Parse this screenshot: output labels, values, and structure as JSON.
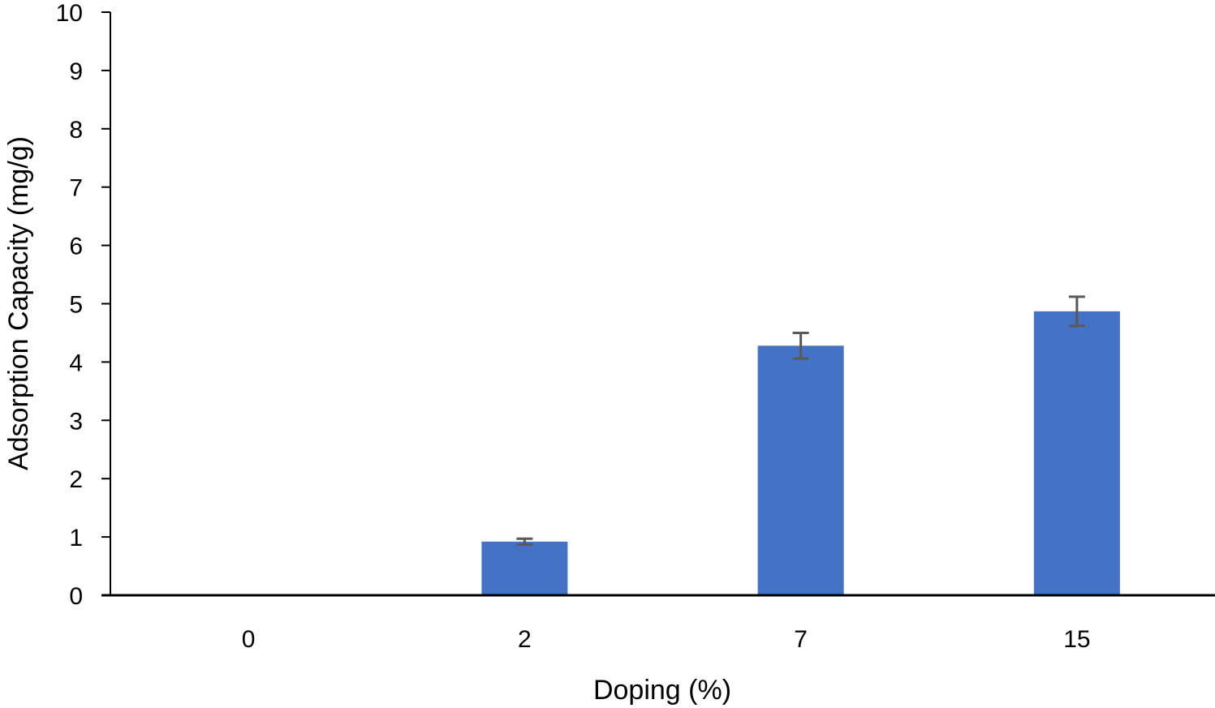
{
  "chart_data": {
    "type": "bar",
    "title": "",
    "xlabel": "Doping  (%)",
    "ylabel": "Adsorption Capacity (mg/g)",
    "categories": [
      "0",
      "2",
      "7",
      "15"
    ],
    "values": [
      0,
      0.92,
      4.28,
      4.87
    ],
    "error": [
      0,
      0.05,
      0.22,
      0.25
    ],
    "ylim": [
      0,
      10
    ],
    "yticks": [
      0,
      1,
      2,
      3,
      4,
      5,
      6,
      7,
      8,
      9,
      10
    ],
    "grid": false,
    "legend": null,
    "bar_color": "#4472C4",
    "error_color": "#595959"
  }
}
